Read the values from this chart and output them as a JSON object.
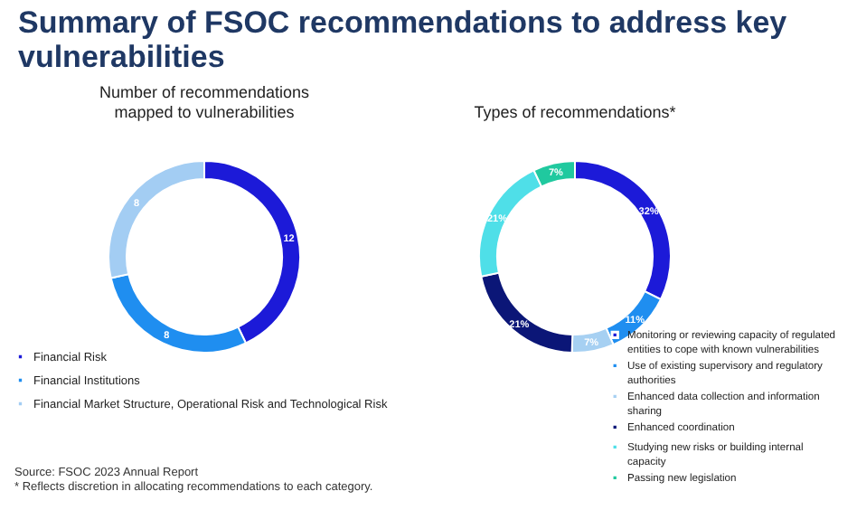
{
  "chart_data": [
    {
      "type": "donut",
      "title": "Summary of FSOC recommendations to address key vulnerabilities",
      "subtitle": "Number of recommendations mapped to vulnerabilities",
      "categories": [
        "Financial Risk",
        "Financial Institutions",
        "Financial Market Structure, Operational Risk and Technological Risk"
      ],
      "values": [
        12,
        8,
        8
      ],
      "colors": [
        "#1c1ad8",
        "#1f8ef0",
        "#a3cdf3"
      ],
      "data_labels": true,
      "legend": "bottom left",
      "annotations": [
        "Source: FSOC 2023 Annual Report",
        "* Reflects discretion in allocating recommendations to each category."
      ]
    },
    {
      "type": "donut",
      "subtitle": "Types of recommendations*",
      "categories": [
        "Monitoring or reviewing capacity of regulated entities to cope with known vulnerabilities",
        "Use of existing supervisory and regulatory authorities",
        "Enhanced data collection and information sharing",
        "Enhanced coordination",
        "Studying new risks or building internal capacity",
        "Passing new legislation"
      ],
      "values": [
        32,
        11,
        7,
        21,
        21,
        7
      ],
      "colors": [
        "#1c1ad8",
        "#1f8ef0",
        "#a6d0f2",
        "#0b1677",
        "#4fdfe8",
        "#20c99f"
      ],
      "value_labels": [
        "32%",
        "11%",
        "7%",
        "21%",
        "21%",
        "7%"
      ],
      "legend": "bottom right"
    }
  ]
}
